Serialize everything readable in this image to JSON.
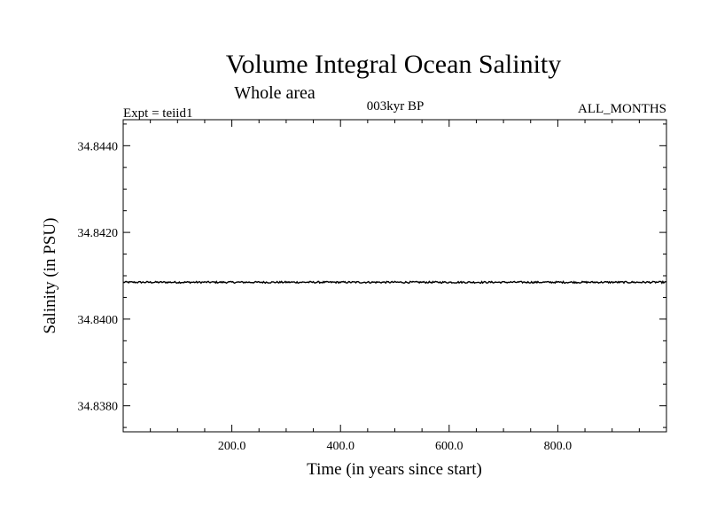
{
  "chart_data": {
    "type": "line",
    "title": "Volume Integral Ocean Salinity",
    "subtitle": "Whole area",
    "header_left": "Expt = teiid1",
    "header_center": "003kyr BP",
    "header_right": "ALL_MONTHS",
    "xlabel": "Time (in years since start)",
    "ylabel": "Salinity (in PSU)",
    "xlim": [
      0,
      1000
    ],
    "ylim": [
      34.8374,
      34.8446
    ],
    "x_ticks": [
      200,
      400,
      600,
      800
    ],
    "x_tick_labels": [
      "200.0",
      "400.0",
      "600.0",
      "800.0"
    ],
    "y_ticks": [
      34.838,
      34.84,
      34.842,
      34.844
    ],
    "y_tick_labels": [
      "34.8380",
      "34.8400",
      "34.8420",
      "34.8440"
    ],
    "grid": false,
    "series": [
      {
        "color": "#000000",
        "x_start": 0,
        "x_end": 1000,
        "mean_value": 34.84085,
        "noise_amplitude": 2e-05
      }
    ]
  }
}
